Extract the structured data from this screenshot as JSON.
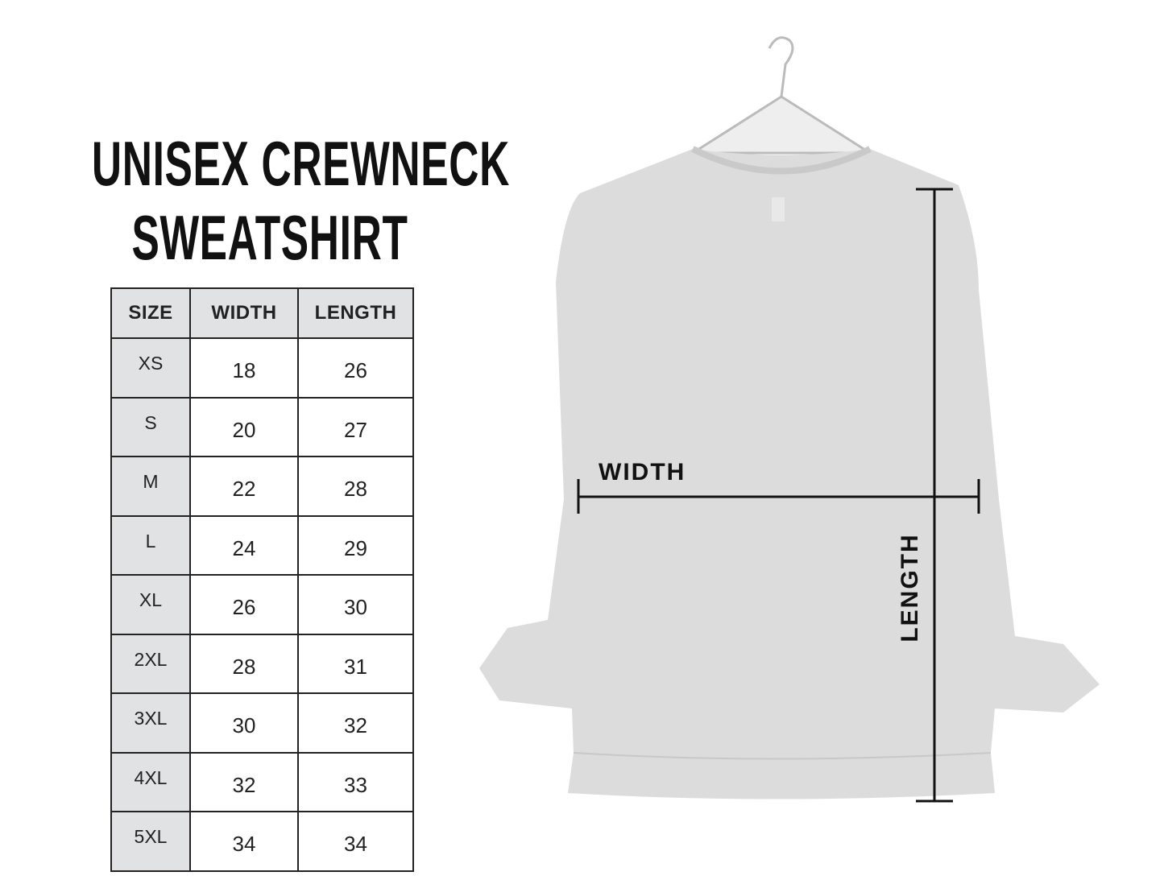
{
  "title": {
    "line1": "UNISEX CREWNECK",
    "line2": "SWEATSHIRT"
  },
  "size_table": {
    "headers": [
      "SIZE",
      "WIDTH",
      "LENGTH"
    ],
    "rows": [
      [
        "XS",
        "18",
        "26"
      ],
      [
        "S",
        "20",
        "27"
      ],
      [
        "M",
        "22",
        "28"
      ],
      [
        "L",
        "24",
        "29"
      ],
      [
        "XL",
        "26",
        "30"
      ],
      [
        "2XL",
        "28",
        "31"
      ],
      [
        "3XL",
        "30",
        "32"
      ],
      [
        "4XL",
        "32",
        "33"
      ],
      [
        "5XL",
        "34",
        "34"
      ]
    ]
  },
  "diagram": {
    "width_label": "WIDTH",
    "length_label": "LENGTH"
  },
  "colors": {
    "header_bg": "#e1e2e4",
    "shirt": "#dcdcdc",
    "ink": "#111111"
  }
}
